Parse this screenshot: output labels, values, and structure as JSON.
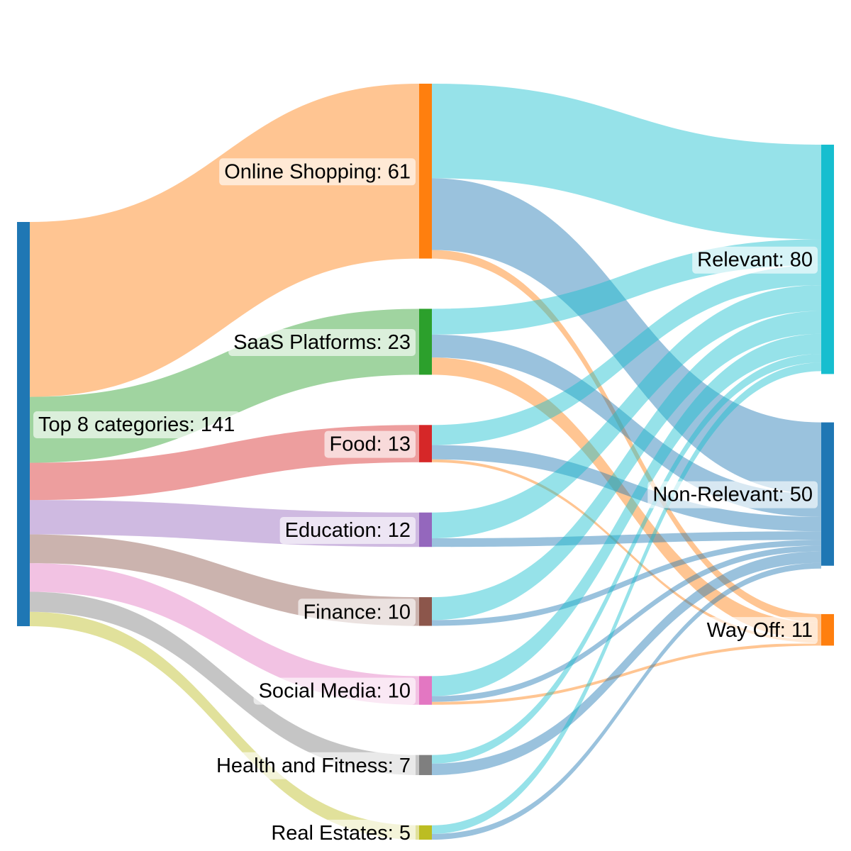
{
  "chart_data": {
    "type": "sankey",
    "nodes": [
      {
        "id": "top",
        "name": "Top 8 categories",
        "value": 141,
        "color": "#1f77b4"
      },
      {
        "id": "online",
        "name": "Online Shopping",
        "value": 61,
        "color": "#ff7f0e"
      },
      {
        "id": "saas",
        "name": "SaaS Platforms",
        "value": 23,
        "color": "#2ca02c"
      },
      {
        "id": "food",
        "name": "Food",
        "value": 13,
        "color": "#d62728"
      },
      {
        "id": "edu",
        "name": "Education",
        "value": 12,
        "color": "#9467bd"
      },
      {
        "id": "fin",
        "name": "Finance",
        "value": 10,
        "color": "#8c564b"
      },
      {
        "id": "social",
        "name": "Social Media",
        "value": 10,
        "color": "#e377c2"
      },
      {
        "id": "health",
        "name": "Health and Fitness",
        "value": 7,
        "color": "#7f7f7f"
      },
      {
        "id": "realestate",
        "name": "Real Estates",
        "value": 5,
        "color": "#bcbd22"
      },
      {
        "id": "relevant",
        "name": "Relevant",
        "value": 80,
        "color": "#17becf"
      },
      {
        "id": "nonrel",
        "name": "Non-Relevant",
        "value": 50,
        "color": "#1f77b4"
      },
      {
        "id": "wayoff",
        "name": "Way Off",
        "value": 11,
        "color": "#ff7f0e"
      }
    ],
    "links": [
      {
        "source": "top",
        "target": "online",
        "value": 61
      },
      {
        "source": "top",
        "target": "saas",
        "value": 23
      },
      {
        "source": "top",
        "target": "food",
        "value": 13
      },
      {
        "source": "top",
        "target": "edu",
        "value": 12
      },
      {
        "source": "top",
        "target": "fin",
        "value": 10
      },
      {
        "source": "top",
        "target": "social",
        "value": 10
      },
      {
        "source": "top",
        "target": "health",
        "value": 7
      },
      {
        "source": "top",
        "target": "realestate",
        "value": 5
      },
      {
        "source": "online",
        "target": "relevant",
        "value": 33
      },
      {
        "source": "online",
        "target": "nonrel",
        "value": 25
      },
      {
        "source": "online",
        "target": "wayoff",
        "value": 3
      },
      {
        "source": "saas",
        "target": "relevant",
        "value": 9
      },
      {
        "source": "saas",
        "target": "nonrel",
        "value": 8
      },
      {
        "source": "saas",
        "target": "wayoff",
        "value": 6
      },
      {
        "source": "food",
        "target": "relevant",
        "value": 7
      },
      {
        "source": "food",
        "target": "nonrel",
        "value": 5
      },
      {
        "source": "food",
        "target": "wayoff",
        "value": 1
      },
      {
        "source": "edu",
        "target": "relevant",
        "value": 9
      },
      {
        "source": "edu",
        "target": "nonrel",
        "value": 3
      },
      {
        "source": "fin",
        "target": "relevant",
        "value": 8
      },
      {
        "source": "fin",
        "target": "nonrel",
        "value": 2
      },
      {
        "source": "social",
        "target": "relevant",
        "value": 7
      },
      {
        "source": "social",
        "target": "nonrel",
        "value": 2
      },
      {
        "source": "social",
        "target": "wayoff",
        "value": 1
      },
      {
        "source": "health",
        "target": "relevant",
        "value": 3
      },
      {
        "source": "health",
        "target": "nonrel",
        "value": 4
      },
      {
        "source": "realestate",
        "target": "relevant",
        "value": 3
      },
      {
        "source": "realestate",
        "target": "nonrel",
        "value": 2
      }
    ]
  }
}
